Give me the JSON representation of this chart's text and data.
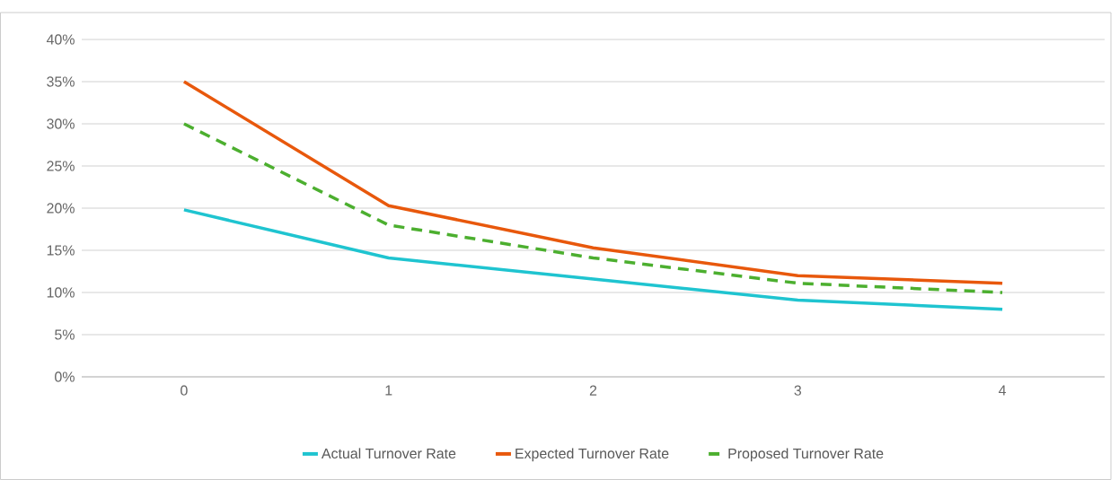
{
  "chart_data": {
    "type": "line",
    "categories": [
      "0",
      "1",
      "2",
      "3",
      "4"
    ],
    "series": [
      {
        "name": "Actual Turnover Rate",
        "color": "#1fc4d0",
        "line_style": "solid",
        "values": [
          19.8,
          14.1,
          11.6,
          9.1,
          8.0
        ]
      },
      {
        "name": "Expected Turnover Rate",
        "color": "#e8580c",
        "line_style": "solid",
        "values": [
          35.0,
          20.3,
          15.3,
          12.0,
          11.1
        ]
      },
      {
        "name": "Proposed Turnover Rate",
        "color": "#4caf2f",
        "line_style": "dashed",
        "values": [
          30.0,
          18.0,
          14.1,
          11.1,
          10.0
        ]
      }
    ],
    "ylim": [
      0,
      40
    ],
    "yticks": [
      {
        "value": 0,
        "label": "0%"
      },
      {
        "value": 5,
        "label": "5%"
      },
      {
        "value": 10,
        "label": "10%"
      },
      {
        "value": 15,
        "label": "15%"
      },
      {
        "value": 20,
        "label": "20%"
      },
      {
        "value": 25,
        "label": "25%"
      },
      {
        "value": 30,
        "label": "30%"
      },
      {
        "value": 35,
        "label": "35%"
      },
      {
        "value": 40,
        "label": "40%"
      }
    ],
    "grid": "y",
    "legend": "bottom",
    "marker": "none"
  }
}
